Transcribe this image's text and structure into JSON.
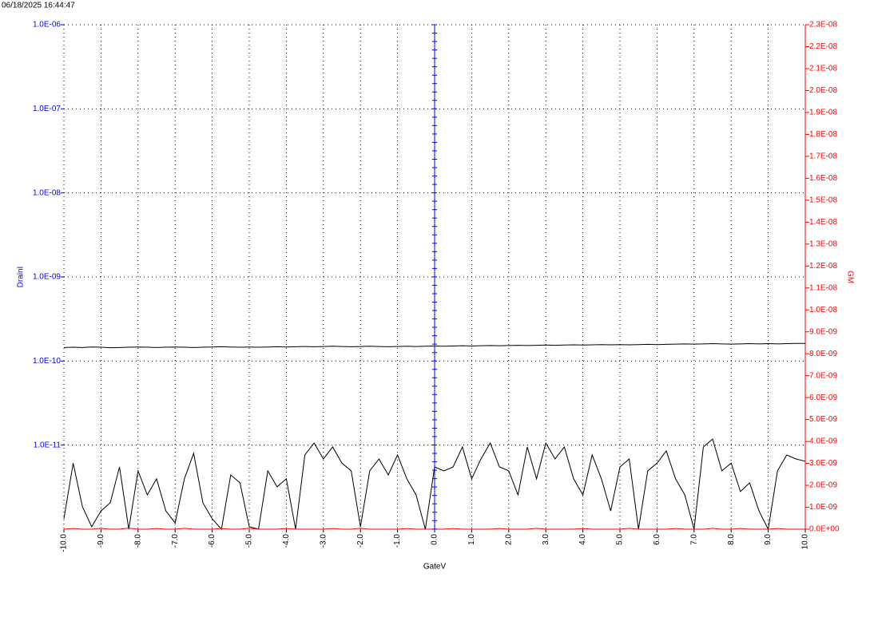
{
  "timestamp": "06/18/2025 16:44:47",
  "chart_data": {
    "type": "line",
    "xlabel": "GateV",
    "ylabel": "DrainI",
    "y2label": "GM",
    "yscale": "log",
    "grid": true,
    "xlim": [
      -10,
      10
    ],
    "ylim": [
      1e-12,
      1e-06
    ],
    "y2lim": [
      0,
      2.3e-08
    ],
    "xticks": [
      {
        "value": -10,
        "label": "-10.0"
      },
      {
        "value": -9,
        "label": "-9.0"
      },
      {
        "value": -8,
        "label": "-8.0"
      },
      {
        "value": -7,
        "label": "-7.0"
      },
      {
        "value": -6,
        "label": "-6.0"
      },
      {
        "value": -5,
        "label": "-5.0"
      },
      {
        "value": -4,
        "label": "-4.0"
      },
      {
        "value": -3,
        "label": "-3.0"
      },
      {
        "value": -2,
        "label": "-2.0"
      },
      {
        "value": -1,
        "label": "-1.0"
      },
      {
        "value": 0,
        "label": "0.0"
      },
      {
        "value": 1,
        "label": "1.0"
      },
      {
        "value": 2,
        "label": "2.0"
      },
      {
        "value": 3,
        "label": "3.0"
      },
      {
        "value": 4,
        "label": "4.0"
      },
      {
        "value": 5,
        "label": "5.0"
      },
      {
        "value": 6,
        "label": "6.0"
      },
      {
        "value": 7,
        "label": "7.0"
      },
      {
        "value": 8,
        "label": "8.0"
      },
      {
        "value": 9,
        "label": "9.0"
      },
      {
        "value": 10,
        "label": "10.0"
      }
    ],
    "yticks": [
      {
        "value": 1e-11,
        "label": "1.0E-11"
      },
      {
        "value": 1e-10,
        "label": "1.0E-10"
      },
      {
        "value": 1e-09,
        "label": "1.0E-09"
      },
      {
        "value": 1e-08,
        "label": "1.0E-08"
      },
      {
        "value": 1e-07,
        "label": "1.0E-07"
      },
      {
        "value": 1e-06,
        "label": "1.0E-06"
      }
    ],
    "y2ticks": [
      {
        "value": 0,
        "label": "0.0E+00"
      },
      {
        "value": 1e-09,
        "label": "1.0E-09"
      },
      {
        "value": 2e-09,
        "label": "2.0E-09"
      },
      {
        "value": 3e-09,
        "label": "3.0E-09"
      },
      {
        "value": 4e-09,
        "label": "4.0E-09"
      },
      {
        "value": 5e-09,
        "label": "5.0E-09"
      },
      {
        "value": 6e-09,
        "label": "6.0E-09"
      },
      {
        "value": 7e-09,
        "label": "7.0E-09"
      },
      {
        "value": 8e-09,
        "label": "8.0E-09"
      },
      {
        "value": 9e-09,
        "label": "9.0E-09"
      },
      {
        "value": 1e-08,
        "label": "1.0E-08"
      },
      {
        "value": 1.1e-08,
        "label": "1.1E-08"
      },
      {
        "value": 1.2e-08,
        "label": "1.2E-08"
      },
      {
        "value": 1.3e-08,
        "label": "1.3E-08"
      },
      {
        "value": 1.4e-08,
        "label": "1.4E-08"
      },
      {
        "value": 1.5e-08,
        "label": "1.5E-08"
      },
      {
        "value": 1.6e-08,
        "label": "1.6E-08"
      },
      {
        "value": 1.7e-08,
        "label": "1.7E-08"
      },
      {
        "value": 1.8e-08,
        "label": "1.8E-08"
      },
      {
        "value": 1.9e-08,
        "label": "1.9E-08"
      },
      {
        "value": 2e-08,
        "label": "2.0E-08"
      },
      {
        "value": 2.1e-08,
        "label": "2.1E-08"
      },
      {
        "value": 2.2e-08,
        "label": "2.2E-08"
      },
      {
        "value": 2.3e-08,
        "label": "2.3E-08"
      }
    ],
    "ycolor": "#0000ff",
    "y2color": "#ff0000",
    "x": [
      -10,
      -9.75,
      -9.5,
      -9.25,
      -9,
      -8.75,
      -8.5,
      -8.25,
      -8,
      -7.75,
      -7.5,
      -7.25,
      -7,
      -6.75,
      -6.5,
      -6.25,
      -6,
      -5.75,
      -5.5,
      -5.25,
      -5,
      -4.75,
      -4.5,
      -4.25,
      -4,
      -3.75,
      -3.5,
      -3.25,
      -3,
      -2.75,
      -2.5,
      -2.25,
      -2,
      -1.75,
      -1.5,
      -1.25,
      -1,
      -0.75,
      -0.5,
      -0.25,
      0,
      0.25,
      0.5,
      0.75,
      1,
      1.25,
      1.5,
      1.75,
      2,
      2.25,
      2.5,
      2.75,
      3,
      3.25,
      3.5,
      3.75,
      4,
      4.25,
      4.5,
      4.75,
      5,
      5.25,
      5.5,
      5.75,
      6,
      6.25,
      6.5,
      6.75,
      7,
      7.25,
      7.5,
      7.75,
      8,
      8.25,
      8.5,
      8.75,
      9,
      9.25,
      9.5,
      9.75,
      10
    ],
    "series": [
      {
        "color": "#000000",
        "values": [
          1.45e-10,
          1.46e-10,
          1.45e-10,
          1.47e-10,
          1.46e-10,
          1.44e-10,
          1.45e-10,
          1.46e-10,
          1.47e-10,
          1.46e-10,
          1.45e-10,
          1.46e-10,
          1.47e-10,
          1.46e-10,
          1.45e-10,
          1.46e-10,
          1.47e-10,
          1.48e-10,
          1.47e-10,
          1.46e-10,
          1.47e-10,
          1.46e-10,
          1.47e-10,
          1.48e-10,
          1.47e-10,
          1.48e-10,
          1.49e-10,
          1.48e-10,
          1.49e-10,
          1.5e-10,
          1.49e-10,
          1.48e-10,
          1.49e-10,
          1.5e-10,
          1.49e-10,
          1.48e-10,
          1.49e-10,
          1.5e-10,
          1.49e-10,
          1.5e-10,
          1.51e-10,
          1.5e-10,
          1.51e-10,
          1.52e-10,
          1.51e-10,
          1.52e-10,
          1.53e-10,
          1.52e-10,
          1.53e-10,
          1.54e-10,
          1.53e-10,
          1.54e-10,
          1.55e-10,
          1.54e-10,
          1.55e-10,
          1.56e-10,
          1.55e-10,
          1.56e-10,
          1.57e-10,
          1.56e-10,
          1.57e-10,
          1.56e-10,
          1.57e-10,
          1.58e-10,
          1.57e-10,
          1.58e-10,
          1.59e-10,
          1.6e-10,
          1.59e-10,
          1.6e-10,
          1.61e-10,
          1.6e-10,
          1.59e-10,
          1.6e-10,
          1.61e-10,
          1.6e-10,
          1.61e-10,
          1.6e-10,
          1.61e-10,
          1.62e-10,
          1.62e-10
        ]
      },
      {
        "color": "#000000",
        "values": [
          1.33e-12,
          6.1e-12,
          1.85e-12,
          1.07e-12,
          1.65e-12,
          2.06e-12,
          5.5e-12,
          1e-12,
          4.94e-12,
          2.56e-12,
          3.97e-12,
          1.65e-12,
          1.19e-12,
          3.97e-12,
          7.98e-12,
          2.06e-12,
          1.33e-12,
          1e-12,
          4.42e-12,
          3.56e-12,
          1.07e-12,
          1e-12,
          4.94e-12,
          3.19e-12,
          3.97e-12,
          1e-12,
          7.64e-12,
          1.06e-11,
          6.85e-12,
          9.51e-12,
          6.1e-12,
          4.94e-12,
          1.07e-12,
          4.94e-12,
          6.85e-12,
          4.42e-12,
          7.64e-12,
          3.97e-12,
          2.56e-12,
          1e-12,
          5.5e-12,
          4.94e-12,
          5.5e-12,
          9.51e-12,
          3.97e-12,
          6.85e-12,
          1.06e-11,
          5.5e-12,
          4.94e-12,
          2.56e-12,
          9.51e-12,
          3.97e-12,
          1.06e-11,
          6.85e-12,
          9.51e-12,
          3.97e-12,
          2.56e-12,
          7.64e-12,
          3.97e-12,
          1.65e-12,
          5.5e-12,
          6.85e-12,
          1e-12,
          4.94e-12,
          6.1e-12,
          8.53e-12,
          3.97e-12,
          2.56e-12,
          1e-12,
          9.51e-12,
          1.18e-11,
          4.94e-12,
          6.1e-12,
          2.8e-12,
          3.56e-12,
          1.65e-12,
          1e-12,
          4.94e-12,
          7.64e-12,
          6.85e-12,
          6.42e-12
        ]
      },
      {
        "color": "#ff0000",
        "axis": "y2",
        "values": [
          0,
          3e-11,
          0,
          0,
          4e-11,
          0,
          0,
          5e-11,
          0,
          0,
          3e-11,
          0,
          0,
          4e-11,
          0,
          0,
          0,
          3e-11,
          0,
          0,
          4e-11,
          0,
          0,
          0,
          3e-11,
          0,
          0,
          0,
          0,
          3e-11,
          0,
          0,
          4e-11,
          0,
          0,
          0,
          0,
          3e-11,
          0,
          0,
          0,
          0,
          3e-11,
          0,
          0,
          0,
          0,
          3e-11,
          0,
          0,
          0,
          4e-11,
          0,
          0,
          0,
          0,
          3e-11,
          0,
          0,
          0,
          0,
          4e-11,
          0,
          0,
          0,
          0,
          3e-11,
          0,
          0,
          0,
          4e-11,
          0,
          0,
          3e-11,
          0,
          0,
          0,
          3e-11,
          0,
          0,
          0
        ]
      }
    ]
  }
}
